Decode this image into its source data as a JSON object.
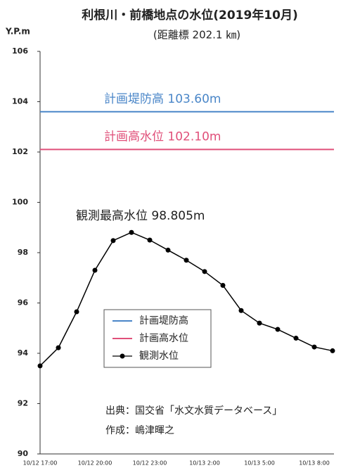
{
  "chart_data": {
    "type": "line",
    "title": "利根川・前橋地点の水位(2019年10月)",
    "subtitle": "(距離標 202.1 ㎞)",
    "y_label": "Y.P.m",
    "categories": [
      "10/12 17:00",
      null,
      null,
      "10/12 20:00",
      null,
      null,
      "10/12 23:00",
      null,
      null,
      "10/13 2:00",
      null,
      null,
      "10/13 5:00",
      null,
      null,
      "10/13 8:00",
      null
    ],
    "series": [
      {
        "name": "観測水位",
        "color": "#000000",
        "values": [
          93.5,
          94.22,
          95.65,
          97.3,
          98.48,
          98.805,
          98.5,
          98.1,
          97.7,
          97.25,
          96.7,
          95.7,
          95.2,
          94.95,
          94.6,
          94.25,
          94.1
        ]
      }
    ],
    "reference_lines": [
      {
        "name": "計画堤防高",
        "value": 103.6,
        "label": "計画堤防高 103.60m",
        "color": "#4a86c8"
      },
      {
        "name": "計画高水位",
        "value": 102.1,
        "label": "計画高水位 102.10m",
        "color": "#e0507a"
      }
    ],
    "peak_annotation": "観測最高水位 98.805m",
    "notes": [
      "出典：国交省「水文水質データベース」",
      "作成：嶋津暉之"
    ],
    "ylim": [
      90,
      106
    ],
    "yticks": [
      90,
      92,
      94,
      96,
      98,
      100,
      102,
      104,
      106
    ],
    "grid": false
  }
}
